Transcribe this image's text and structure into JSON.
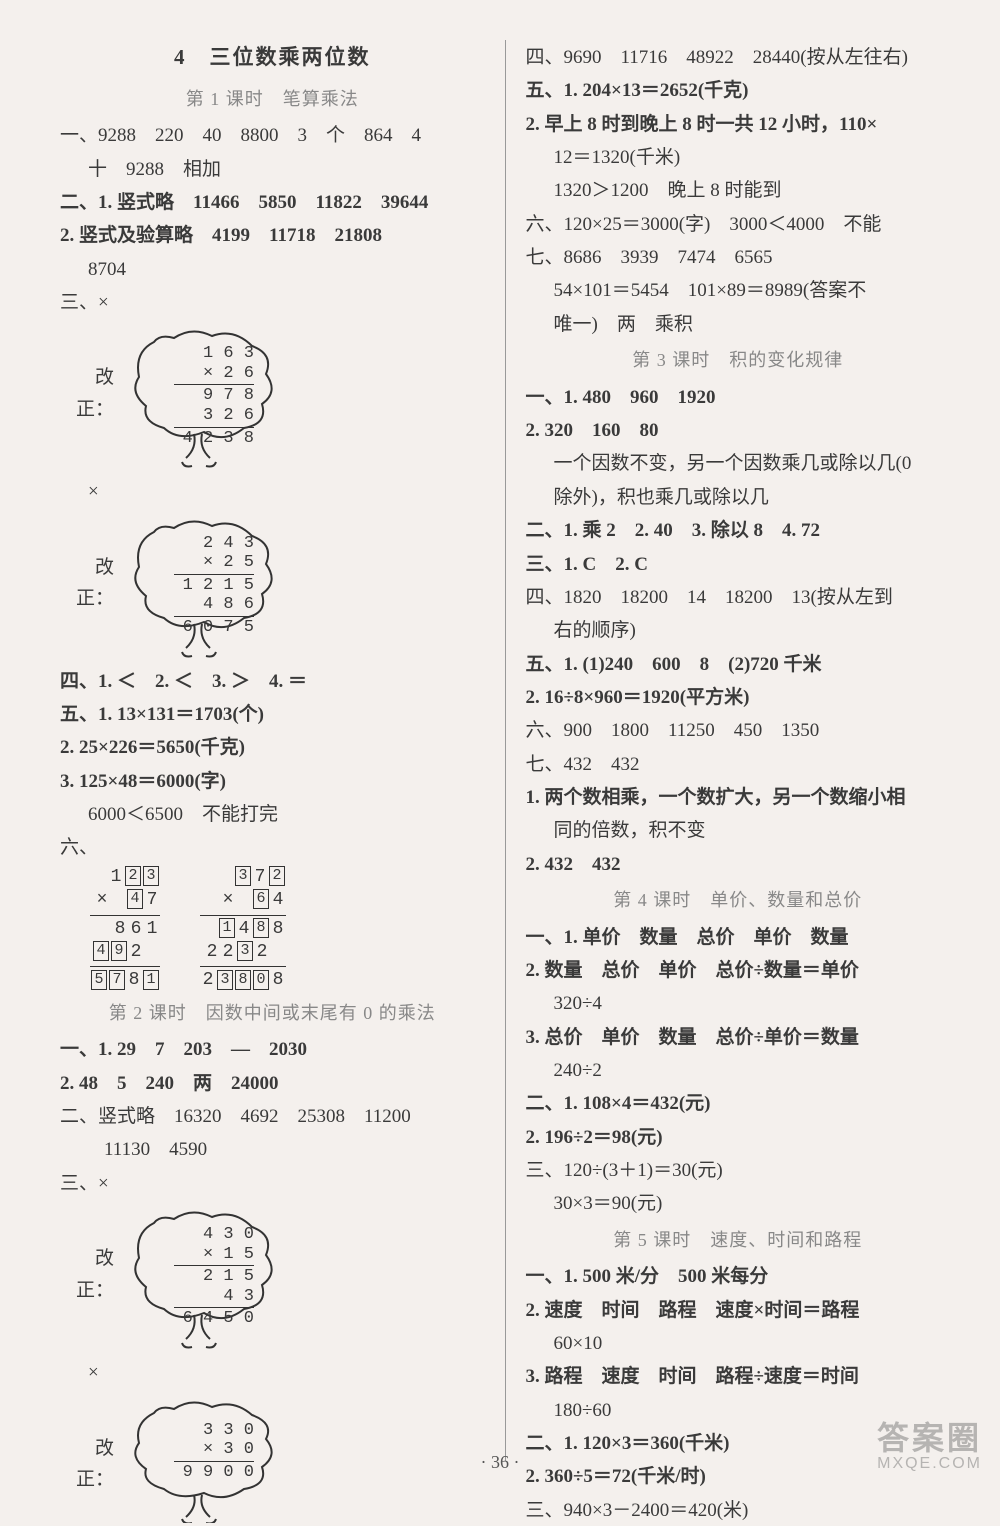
{
  "page_number": "· 36 ·",
  "watermark": {
    "line1": "答案圈",
    "line2": "MXQE.COM"
  },
  "left": {
    "chapter": "4　三位数乘两位数",
    "lesson1": "第 1 课时　笔算乘法",
    "l1": "一、9288　220　40　8800　3　个　864　4",
    "l1b": "十　9288　相加",
    "l2": "二、1. 竖式略　11466　5850　11822　39644",
    "l3": "2. 竖式及验算略　4199　11718　21808",
    "l3b": "8704",
    "l4": "三、×",
    "tree1_label": "改正：",
    "tree1": [
      "1 6 3",
      "×   2 6",
      "9 7 8",
      "3 2 6   ",
      "4 2 3 8"
    ],
    "l5": "×",
    "tree2_label": "改正：",
    "tree2": [
      "2 4 3",
      "×   2 5",
      "1 2 1 5",
      "4 8 6   ",
      "6 0 7 5"
    ],
    "l6": "四、1. ＜　2. ＜　3. ＞　4. ＝",
    "l7": "五、1. 13×131＝1703(个)",
    "l8": "2. 25×226＝5650(千克)",
    "l9": "3. 125×48＝6000(字)",
    "l9b": "6000＜6500　不能打完",
    "l10": "六、",
    "fill_left": {
      "r1": [
        "",
        "1",
        "[2]",
        "[3]"
      ],
      "r2": [
        "×",
        "",
        "[4]",
        "7"
      ],
      "r3": [
        "",
        "8",
        "6",
        "1"
      ],
      "r4": [
        "[4]",
        "[9]",
        "2",
        ""
      ],
      "r5": [
        "[5]",
        "[7]",
        "8",
        "[1]"
      ]
    },
    "fill_right": {
      "r1": [
        "",
        "[3]",
        "7",
        "[2]"
      ],
      "r2": [
        "×",
        "",
        "[6]",
        "4"
      ],
      "r3": [
        "[1]",
        "4",
        "[8]",
        "8"
      ],
      "r4": [
        "2",
        "2",
        "[3]",
        "2",
        ""
      ],
      "r5": [
        "2",
        "[3]",
        "[8]",
        "[0]",
        "8"
      ]
    },
    "lesson2": "第 2 课时　因数中间或末尾有 0 的乘法",
    "l11": "一、1. 29　7　203　—　2030",
    "l12": "2. 48　5　240　两　24000",
    "l13": "二、竖式略　16320　4692　25308　11200",
    "l13b": "11130　4590",
    "l14": "三、×",
    "tree3_label": "改正：",
    "tree3": [
      "4 3 0",
      "×   1 5",
      "2 1 5",
      "4 3   ",
      "6 4 5 0"
    ],
    "l15": "×",
    "tree4_label": "改正：",
    "tree4": [
      "3 3 0",
      "×   3 0",
      "9 9 0 0"
    ]
  },
  "right": {
    "r1": "四、9690　11716　48922　28440(按从左往右)",
    "r2": "五、1. 204×13＝2652(千克)",
    "r3": "2. 早上 8 时到晚上 8 时一共 12 小时，110×",
    "r3b": "12＝1320(千米)",
    "r3c": "1320＞1200　晚上 8 时能到",
    "r4": "六、120×25＝3000(字)　3000＜4000　不能",
    "r5": "七、8686　3939　7474　6565",
    "r5b": "54×101＝5454　101×89＝8989(答案不",
    "r5c": "唯一)　两　乘积",
    "lesson3": "第 3 课时　积的变化规律",
    "r6": "一、1. 480　960　1920",
    "r7": "2. 320　160　80",
    "r8": "一个因数不变，另一个因数乘几或除以几(0",
    "r8b": "除外)，积也乘几或除以几",
    "r9": "二、1. 乘 2　2. 40　3. 除以 8　4. 72",
    "r10": "三、1. C　2. C",
    "r11": "四、1820　18200　14　18200　13(按从左到",
    "r11b": "右的顺序)",
    "r12": "五、1. (1)240　600　8　(2)720 千米",
    "r13": "2. 16÷8×960＝1920(平方米)",
    "r14": "六、900　1800　11250　450　1350",
    "r15": "七、432　432",
    "r16": "1. 两个数相乘，一个数扩大，另一个数缩小相",
    "r16b": "同的倍数，积不变",
    "r17": "2. 432　432",
    "lesson4": "第 4 课时　单价、数量和总价",
    "r18": "一、1. 单价　数量　总价　单价　数量",
    "r19": "2. 数量　总价　单价　总价÷数量＝单价",
    "r19b": "320÷4",
    "r20": "3. 总价　单价　数量　总价÷单价＝数量",
    "r20b": "240÷2",
    "r21": "二、1. 108×4＝432(元)",
    "r22": "2. 196÷2＝98(元)",
    "r23": "三、120÷(3＋1)＝30(元)",
    "r23b": "30×3＝90(元)",
    "lesson5": "第 5 课时　速度、时间和路程",
    "r24": "一、1. 500 米/分　500 米每分",
    "r25": "2. 速度　时间　路程　速度×时间＝路程",
    "r25b": "60×10",
    "r26": "3. 路程　速度　时间　路程÷速度＝时间",
    "r26b": "180÷60",
    "r27": "二、1. 120×3＝360(千米)",
    "r28": "2. 360÷5＝72(千米/时)",
    "r29": "三、940×3－2400＝420(米)"
  }
}
